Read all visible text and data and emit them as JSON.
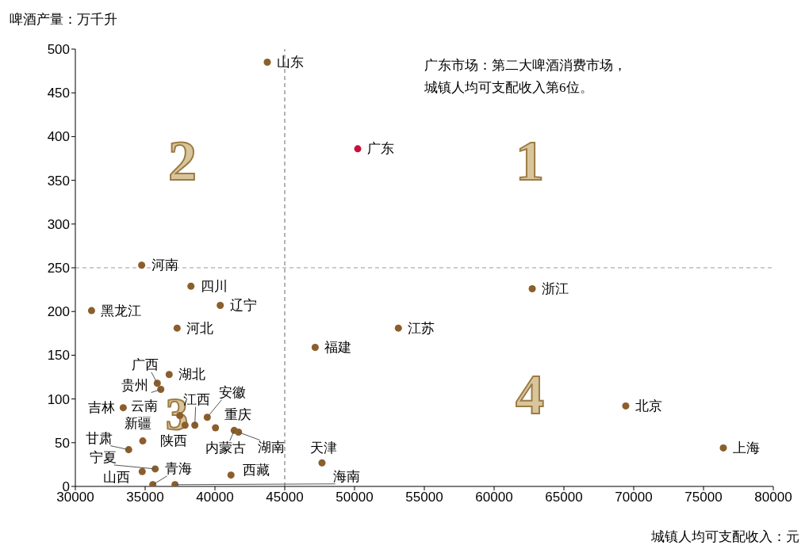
{
  "chart_data": {
    "type": "scatter",
    "xlabel": "城镇人均可支配收入：元",
    "ylabel": "啤酒产量：万千升",
    "xlim": [
      30000,
      80000
    ],
    "xticks": [
      30000,
      35000,
      40000,
      45000,
      50000,
      55000,
      60000,
      65000,
      70000,
      75000,
      80000
    ],
    "ylim": [
      0,
      500
    ],
    "yticks": [
      0,
      50,
      100,
      150,
      200,
      250,
      300,
      350,
      400,
      450,
      500
    ],
    "marker": "circle",
    "series": [
      {
        "x": [
          43750,
          50230,
          34750,
          38280,
          31160,
          40380,
          37290,
          53140,
          47180,
          62730,
          69430,
          76420,
          35870,
          36720,
          36120,
          33430,
          37480,
          37860,
          38560,
          39450,
          40040,
          41380,
          41690,
          34830,
          33820,
          35720,
          34790,
          35550,
          37140,
          41150,
          47670
        ],
        "values": [
          485,
          386,
          253,
          229,
          201,
          207,
          181,
          181,
          159,
          226,
          92,
          44,
          118,
          128,
          111,
          90,
          81,
          70,
          70,
          79,
          67,
          64,
          62,
          52,
          42,
          20,
          17,
          2,
          2,
          13,
          27
        ],
        "colors": [
          "#8b5e2b",
          "#c8103a",
          "#8b5e2b",
          "#8b5e2b",
          "#8b5e2b",
          "#8b5e2b",
          "#8b5e2b",
          "#8b5e2b",
          "#8b5e2b",
          "#8b5e2b",
          "#8b5e2b",
          "#8b5e2b",
          "#8b5e2b",
          "#8b5e2b",
          "#8b5e2b",
          "#8b5e2b",
          "#8b5e2b",
          "#8b5e2b",
          "#8b5e2b",
          "#8b5e2b",
          "#8b5e2b",
          "#8b5e2b",
          "#8b5e2b",
          "#8b5e2b",
          "#8b5e2b",
          "#8b5e2b",
          "#8b5e2b",
          "#8b5e2b",
          "#8b5e2b",
          "#8b5e2b",
          "#8b5e2b"
        ]
      }
    ],
    "ref_lines": [
      {
        "axis": "x",
        "value": 45000,
        "color": "#666666",
        "line_style": "dashed"
      },
      {
        "axis": "y",
        "value": 250,
        "color": "#999999",
        "line_style": "dashed"
      }
    ],
    "annotations": [
      {
        "text": "山东",
        "x": 43750,
        "y": 485
      },
      {
        "text": "广东",
        "x": 50230,
        "y": 386
      },
      {
        "text": "河南",
        "x": 34750,
        "y": 253
      },
      {
        "text": "四川",
        "x": 38280,
        "y": 229
      },
      {
        "text": "黑龙江",
        "x": 31160,
        "y": 201
      },
      {
        "text": "辽宁",
        "x": 40380,
        "y": 207
      },
      {
        "text": "河北",
        "x": 37290,
        "y": 181
      },
      {
        "text": "江苏",
        "x": 53140,
        "y": 181
      },
      {
        "text": "福建",
        "x": 47180,
        "y": 159
      },
      {
        "text": "浙江",
        "x": 62730,
        "y": 226
      },
      {
        "text": "北京",
        "x": 69430,
        "y": 92
      },
      {
        "text": "上海",
        "x": 76420,
        "y": 44
      },
      {
        "text": "广西",
        "x": 35870,
        "y": 118
      },
      {
        "text": "湖北",
        "x": 36720,
        "y": 128
      },
      {
        "text": "贵州",
        "x": 36120,
        "y": 111
      },
      {
        "text": "吉林",
        "x": 33430,
        "y": 90
      },
      {
        "text": "云南",
        "x": 37480,
        "y": 81
      },
      {
        "text": "新疆",
        "x": 37860,
        "y": 70
      },
      {
        "text": "江西",
        "x": 38560,
        "y": 70
      },
      {
        "text": "安徽",
        "x": 39450,
        "y": 79
      },
      {
        "text": "重庆",
        "x": 40040,
        "y": 67
      },
      {
        "text": "内蒙古",
        "x": 41380,
        "y": 64
      },
      {
        "text": "湖南",
        "x": 41690,
        "y": 62
      },
      {
        "text": "陕西",
        "x": 34830,
        "y": 52
      },
      {
        "text": "甘肃",
        "x": 33820,
        "y": 42
      },
      {
        "text": "宁夏",
        "x": 35720,
        "y": 20
      },
      {
        "text": "山西",
        "x": 34790,
        "y": 17
      },
      {
        "text": "青海",
        "x": 35550,
        "y": 2
      },
      {
        "text": "海南",
        "x": 37140,
        "y": 2
      },
      {
        "text": "西藏",
        "x": 41150,
        "y": 13
      },
      {
        "text": "天津",
        "x": 47670,
        "y": 27
      },
      "广东市场：第二大啤酒消费市场，",
      "城镇人均可支配收入第6位。",
      "1",
      "2",
      "3",
      "4"
    ]
  }
}
